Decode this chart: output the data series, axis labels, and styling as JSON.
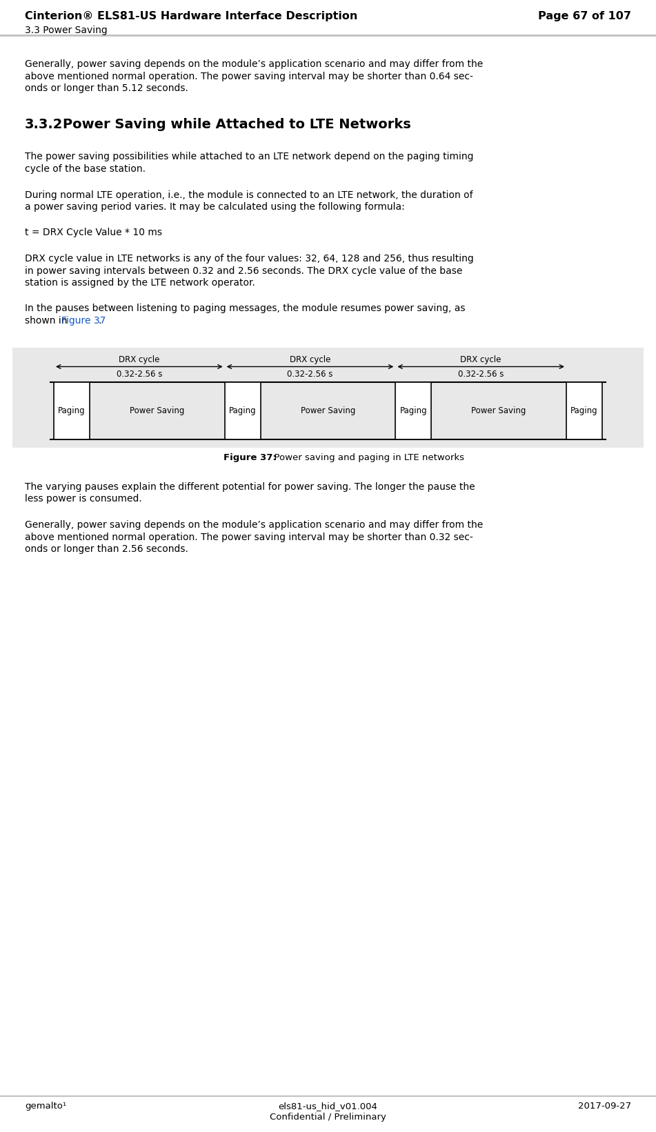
{
  "bg_color": "#ffffff",
  "header_line_color": "#c0c0c0",
  "footer_line_color": "#c0c0c0",
  "header_title": "Cinterion® ELS81-US Hardware Interface Description",
  "header_page": "Page 67 of 107",
  "header_section": "3.3 Power Saving",
  "footer_left": "gemalto¹",
  "footer_center1": "els81-us_hid_v01.004",
  "footer_center2": "Confidential / Preliminary",
  "footer_right": "2017-09-27",
  "para1_lines": [
    "Generally, power saving depends on the module’s application scenario and may differ from the",
    "above mentioned normal operation. The power saving interval may be shorter than 0.64 sec-",
    "onds or longer than 5.12 seconds."
  ],
  "section_num": "3.3.2",
  "section_title": "Power Saving while Attached to LTE Networks",
  "para2_lines": [
    "The power saving possibilities while attached to an LTE network depend on the paging timing",
    "cycle of the base station."
  ],
  "para3_lines": [
    "During normal LTE operation, i.e., the module is connected to an LTE network, the duration of",
    "a power saving period varies. It may be calculated using the following formula:"
  ],
  "formula": "t = DRX Cycle Value * 10 ms",
  "para4_lines": [
    "DRX cycle value in LTE networks is any of the four values: 32, 64, 128 and 256, thus resulting",
    "in power saving intervals between 0.32 and 2.56 seconds. The DRX cycle value of the base",
    "station is assigned by the LTE network operator."
  ],
  "para5_line1": "In the pauses between listening to paging messages, the module resumes power saving, as",
  "para5_line2_pre": "shown in ",
  "para5_line2_link": "Figure 37",
  "para5_line2_post": ".",
  "fig_caption_bold": "Figure 37:",
  "fig_caption_normal": "  Power saving and paging in LTE networks",
  "para6_lines": [
    "The varying pauses explain the different potential for power saving. The longer the pause the",
    "less power is consumed."
  ],
  "para7_lines": [
    "Generally, power saving depends on the module’s application scenario and may differ from the",
    "above mentioned normal operation. The power saving interval may be shorter than 0.32 sec-",
    "onds or longer than 2.56 seconds."
  ],
  "diagram_bg": "#e8e8e8",
  "diagram_box_color": "#ffffff",
  "diagram_border_color": "#000000",
  "diagram_arrow_color": "#000000",
  "diagram_text_drx": "DRX cycle",
  "diagram_text_time": "0.32-2.56 s",
  "diagram_text_paging": "Paging",
  "diagram_text_ps": "Power Saving",
  "link_color": "#1155cc"
}
